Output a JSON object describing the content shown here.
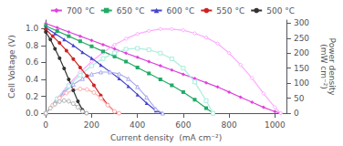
{
  "chart_data": {
    "type": "line",
    "xlabel": "Current density  (mA cm⁻²)",
    "ylabel": "Cell Voltage (V)",
    "y2label": "Power density\n(mW cm⁻²)",
    "xlim": [
      0,
      1050
    ],
    "xticks": [
      0,
      200,
      400,
      600,
      800,
      1000
    ],
    "ylim": [
      0,
      1.1
    ],
    "yticks": [
      {
        "value": 0,
        "label": "0.0"
      },
      0.2,
      0.4,
      0.6,
      0.8,
      {
        "value": 1,
        "label": "1.0"
      }
    ],
    "y2lim": [
      0,
      310
    ],
    "y2ticks": [
      0,
      50,
      100,
      150,
      200,
      250,
      300
    ],
    "grid": false,
    "legend": "upper right",
    "series": [
      {
        "name": "700 °C",
        "color": "#dd44dd",
        "marker": "diamond",
        "x": [
          0,
          50,
          100,
          150,
          200,
          250,
          300,
          350,
          400,
          450,
          500,
          550,
          600,
          650,
          700,
          750,
          800,
          850,
          900,
          950,
          1000,
          1025
        ],
        "values": [
          1.06,
          1.01,
          0.96,
          0.91,
          0.86,
          0.81,
          0.76,
          0.71,
          0.66,
          0.61,
          0.56,
          0.51,
          0.46,
          0.41,
          0.36,
          0.31,
          0.25,
          0.19,
          0.13,
          0.07,
          0.02,
          0.0
        ]
      },
      {
        "color": "#ffaaff",
        "marker": "diamond",
        "axis": "y2",
        "x": [
          0,
          50,
          100,
          150,
          200,
          250,
          300,
          350,
          400,
          450,
          500,
          550,
          600,
          650,
          700,
          750,
          800,
          850,
          900,
          950,
          1000,
          1025
        ],
        "values": [
          0,
          50,
          96,
          136,
          172,
          202,
          228,
          248,
          264,
          274,
          280,
          280,
          276,
          266,
          252,
          232,
          200,
          161,
          117,
          66,
          20,
          0
        ]
      },
      {
        "name": "650 °C",
        "color": "#22aa66",
        "marker": "square",
        "x": [
          0,
          50,
          100,
          150,
          200,
          250,
          300,
          350,
          400,
          450,
          500,
          550,
          600,
          650,
          700,
          730
        ],
        "values": [
          1.03,
          0.97,
          0.91,
          0.85,
          0.79,
          0.73,
          0.67,
          0.61,
          0.54,
          0.47,
          0.4,
          0.33,
          0.25,
          0.16,
          0.06,
          0.0
        ]
      },
      {
        "color": "#aaeedd",
        "marker": "square",
        "axis": "y2",
        "x": [
          0,
          50,
          100,
          150,
          200,
          250,
          300,
          350,
          400,
          450,
          500,
          550,
          600,
          650,
          700,
          730
        ],
        "values": [
          0,
          48,
          91,
          127,
          158,
          182,
          201,
          213,
          216,
          211,
          200,
          181,
          150,
          104,
          42,
          0
        ]
      },
      {
        "name": "600 °C",
        "color": "#4444cc",
        "marker": "triangle",
        "x": [
          0,
          40,
          80,
          120,
          160,
          200,
          240,
          280,
          320,
          360,
          400,
          440,
          480,
          510
        ],
        "values": [
          1.01,
          0.94,
          0.87,
          0.8,
          0.72,
          0.65,
          0.57,
          0.49,
          0.41,
          0.32,
          0.22,
          0.12,
          0.03,
          0.0
        ]
      },
      {
        "color": "#aaaaee",
        "marker": "triangle",
        "axis": "y2",
        "x": [
          0,
          40,
          80,
          120,
          160,
          200,
          240,
          280,
          320,
          360,
          400,
          440,
          480,
          510
        ],
        "values": [
          0,
          37,
          70,
          96,
          115,
          130,
          137,
          137,
          131,
          115,
          88,
          53,
          14,
          0
        ]
      },
      {
        "name": "550 °C",
        "color": "#cc2222",
        "marker": "circle",
        "x": [
          0,
          30,
          60,
          90,
          120,
          150,
          180,
          210,
          240,
          270,
          300,
          320
        ],
        "values": [
          0.99,
          0.91,
          0.83,
          0.74,
          0.64,
          0.54,
          0.44,
          0.33,
          0.21,
          0.1,
          0.02,
          0.0
        ]
      },
      {
        "color": "#ffaaaa",
        "marker": "circle",
        "axis": "y2",
        "x": [
          0,
          30,
          60,
          90,
          120,
          150,
          180,
          210,
          240,
          270,
          300,
          320
        ],
        "values": [
          0,
          27,
          50,
          67,
          77,
          81,
          79,
          69,
          50,
          27,
          6,
          0
        ]
      },
      {
        "name": "500 °C",
        "color": "#333333",
        "marker": "circle",
        "x": [
          0,
          20,
          40,
          60,
          80,
          100,
          120,
          140,
          160,
          178
        ],
        "values": [
          0.96,
          0.87,
          0.76,
          0.65,
          0.53,
          0.4,
          0.27,
          0.14,
          0.04,
          0.0
        ]
      },
      {
        "color": "#aaaaaa",
        "marker": "circle",
        "axis": "y2",
        "x": [
          0,
          20,
          40,
          60,
          80,
          100,
          120,
          140,
          160,
          178
        ],
        "values": [
          0,
          17,
          30,
          39,
          42,
          40,
          32,
          20,
          6,
          0
        ]
      }
    ]
  }
}
